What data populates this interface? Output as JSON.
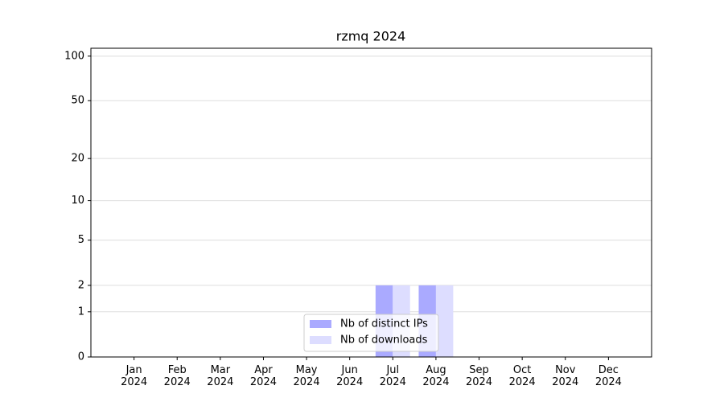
{
  "chart_data": {
    "type": "bar",
    "title": "rzmq 2024",
    "categories": [
      "Jan\n2024",
      "Feb\n2024",
      "Mar\n2024",
      "Apr\n2024",
      "May\n2024",
      "Jun\n2024",
      "Jul\n2024",
      "Aug\n2024",
      "Sep\n2024",
      "Oct\n2024",
      "Nov\n2024",
      "Dec\n2024"
    ],
    "series": [
      {
        "name": "Nb of distinct IPs",
        "color": "#aaaaff",
        "values": [
          0,
          0,
          0,
          0,
          0,
          0,
          2,
          2,
          0,
          0,
          0,
          0
        ]
      },
      {
        "name": "Nb of downloads",
        "color": "#ddddff",
        "values": [
          0,
          0,
          0,
          0,
          0,
          0,
          2,
          2,
          0,
          0,
          0,
          0
        ]
      }
    ],
    "yscale": "log1p",
    "ylim": [
      0,
      113
    ],
    "yticks": [
      0,
      1,
      2,
      5,
      10,
      20,
      50,
      100
    ],
    "grid": true,
    "legend": "lower center"
  }
}
